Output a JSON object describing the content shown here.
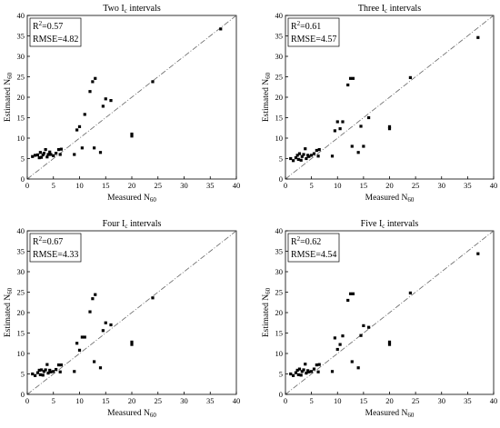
{
  "chart_data": [
    {
      "type": "scatter",
      "title": "Two I",
      "title_sub": "c",
      "title_rest": " intervals",
      "xlabel": "Measured N",
      "xlabel_sub": "60",
      "ylabel": "Estimated N",
      "ylabel_sub": "60",
      "xlim": [
        0,
        40
      ],
      "ylim": [
        0,
        40
      ],
      "xticks": [
        "0",
        "5",
        "10",
        "15",
        "20",
        "25",
        "30",
        "35",
        "40"
      ],
      "yticks": [
        "0",
        "5",
        "10",
        "15",
        "20",
        "25",
        "30",
        "35",
        "40"
      ],
      "r2_label": "R",
      "r2_sup": "2",
      "r2_value": "=0.57",
      "rmse": "RMSE=4.82",
      "reference_line": "1:1",
      "x": [
        1.0,
        1.5,
        2.0,
        2.3,
        2.5,
        2.7,
        3.0,
        3.2,
        3.5,
        3.8,
        4.0,
        4.3,
        4.5,
        5.0,
        5.5,
        6.0,
        6.3,
        6.5,
        9.0,
        9.5,
        10.0,
        10.5,
        11.0,
        12.0,
        12.5,
        12.8,
        13.0,
        14.0,
        14.5,
        15.0,
        16.0,
        20.0,
        20.0,
        24.0,
        37.0
      ],
      "y": [
        5.5,
        5.8,
        5.9,
        5.2,
        6.5,
        5.3,
        5.9,
        6.3,
        7.2,
        5.4,
        6.0,
        6.6,
        6.0,
        5.7,
        6.3,
        7.2,
        6.0,
        7.3,
        6.0,
        12.0,
        12.8,
        7.6,
        15.8,
        21.4,
        23.8,
        7.6,
        24.6,
        6.5,
        17.8,
        19.6,
        19.2,
        10.5,
        11.0,
        23.8,
        36.7
      ]
    },
    {
      "type": "scatter",
      "title": "Three I",
      "title_sub": "c",
      "title_rest": " intervals",
      "xlabel": "Measured N",
      "xlabel_sub": "60",
      "ylabel": "Estimated N",
      "ylabel_sub": "60",
      "xlim": [
        0,
        40
      ],
      "ylim": [
        0,
        40
      ],
      "xticks": [
        "0",
        "5",
        "10",
        "15",
        "20",
        "25",
        "30",
        "35",
        "40"
      ],
      "yticks": [
        "0",
        "5",
        "10",
        "15",
        "20",
        "25",
        "30",
        "35",
        "40"
      ],
      "r2_label": "R",
      "r2_sup": "2",
      "r2_value": "=0.61",
      "rmse": "RMSE=4.57",
      "reference_line": "1:1",
      "x": [
        1.0,
        1.5,
        2.0,
        2.3,
        2.5,
        2.7,
        3.0,
        3.2,
        3.5,
        3.8,
        4.0,
        4.3,
        4.5,
        5.0,
        5.5,
        6.0,
        6.3,
        6.5,
        9.0,
        9.5,
        10.0,
        10.5,
        11.0,
        12.0,
        12.5,
        12.8,
        13.0,
        14.0,
        14.5,
        15.0,
        16.0,
        20.0,
        20.0,
        24.0,
        37.0
      ],
      "y": [
        5.0,
        4.5,
        5.2,
        5.8,
        4.8,
        6.2,
        4.6,
        5.5,
        6.0,
        7.4,
        5.0,
        5.8,
        5.5,
        5.8,
        6.2,
        7.0,
        5.6,
        7.2,
        5.6,
        11.8,
        14.0,
        12.3,
        14.0,
        23.0,
        24.6,
        8.0,
        24.6,
        6.5,
        12.9,
        8.0,
        15.0,
        12.8,
        12.3,
        24.8,
        34.6
      ]
    },
    {
      "type": "scatter",
      "title": "Four I",
      "title_sub": "c",
      "title_rest": " intervals",
      "xlabel": "Measured N",
      "xlabel_sub": "60",
      "ylabel": "Estimated N",
      "ylabel_sub": "60",
      "xlim": [
        0,
        40
      ],
      "ylim": [
        0,
        40
      ],
      "xticks": [
        "0",
        "5",
        "10",
        "15",
        "20",
        "25",
        "30",
        "35",
        "40"
      ],
      "yticks": [
        "0",
        "5",
        "10",
        "15",
        "20",
        "25",
        "30",
        "35",
        "40"
      ],
      "r2_label": "R",
      "r2_sup": "2",
      "r2_value": "=0.67",
      "rmse": "RMSE=4.33",
      "reference_line": "1:1",
      "x": [
        1.0,
        1.5,
        2.0,
        2.3,
        2.5,
        2.7,
        3.0,
        3.2,
        3.5,
        3.8,
        4.0,
        4.3,
        4.5,
        5.0,
        5.5,
        6.0,
        6.3,
        6.5,
        9.0,
        9.5,
        10.0,
        10.5,
        11.0,
        12.0,
        12.5,
        12.8,
        13.0,
        14.0,
        14.5,
        15.0,
        16.0,
        20.0,
        20.0,
        24.0
      ],
      "y": [
        5.0,
        4.6,
        5.3,
        5.9,
        4.8,
        6.0,
        4.7,
        5.6,
        6.0,
        7.3,
        5.2,
        5.9,
        5.5,
        5.6,
        6.1,
        7.2,
        5.5,
        7.2,
        5.6,
        12.5,
        10.8,
        14.0,
        14.0,
        20.2,
        23.4,
        8.0,
        24.4,
        6.5,
        15.6,
        17.5,
        17.0,
        12.2,
        12.8,
        23.6
      ]
    },
    {
      "type": "scatter",
      "title": "Five I",
      "title_sub": "c",
      "title_rest": " intervals",
      "xlabel": "Measured N",
      "xlabel_sub": "60",
      "ylabel": "Estimated N",
      "ylabel_sub": "60",
      "xlim": [
        0,
        40
      ],
      "ylim": [
        0,
        40
      ],
      "xticks": [
        "0",
        "5",
        "10",
        "15",
        "20",
        "25",
        "30",
        "35",
        "40"
      ],
      "yticks": [
        "0",
        "5",
        "10",
        "15",
        "20",
        "25",
        "30",
        "35",
        "40"
      ],
      "r2_label": "R",
      "r2_sup": "2",
      "r2_value": "=0.62",
      "rmse": "RMSE=4.54",
      "reference_line": "1:1",
      "x": [
        1.0,
        1.5,
        2.0,
        2.3,
        2.5,
        2.7,
        3.0,
        3.2,
        3.5,
        3.8,
        4.0,
        4.3,
        4.5,
        5.0,
        5.5,
        6.0,
        6.3,
        6.5,
        9.0,
        9.5,
        10.0,
        10.5,
        11.0,
        12.0,
        12.5,
        12.8,
        13.0,
        14.0,
        14.5,
        15.0,
        16.0,
        20.0,
        20.0,
        24.0,
        37.0
      ],
      "y": [
        5.0,
        4.6,
        5.3,
        5.9,
        4.8,
        6.2,
        4.7,
        5.6,
        6.0,
        7.4,
        5.2,
        5.8,
        5.5,
        5.6,
        6.2,
        7.2,
        5.5,
        7.3,
        5.6,
        13.8,
        11.0,
        12.2,
        14.3,
        23.0,
        24.6,
        8.0,
        24.6,
        6.5,
        14.4,
        16.8,
        16.4,
        12.2,
        12.8,
        24.8,
        34.4
      ]
    }
  ]
}
